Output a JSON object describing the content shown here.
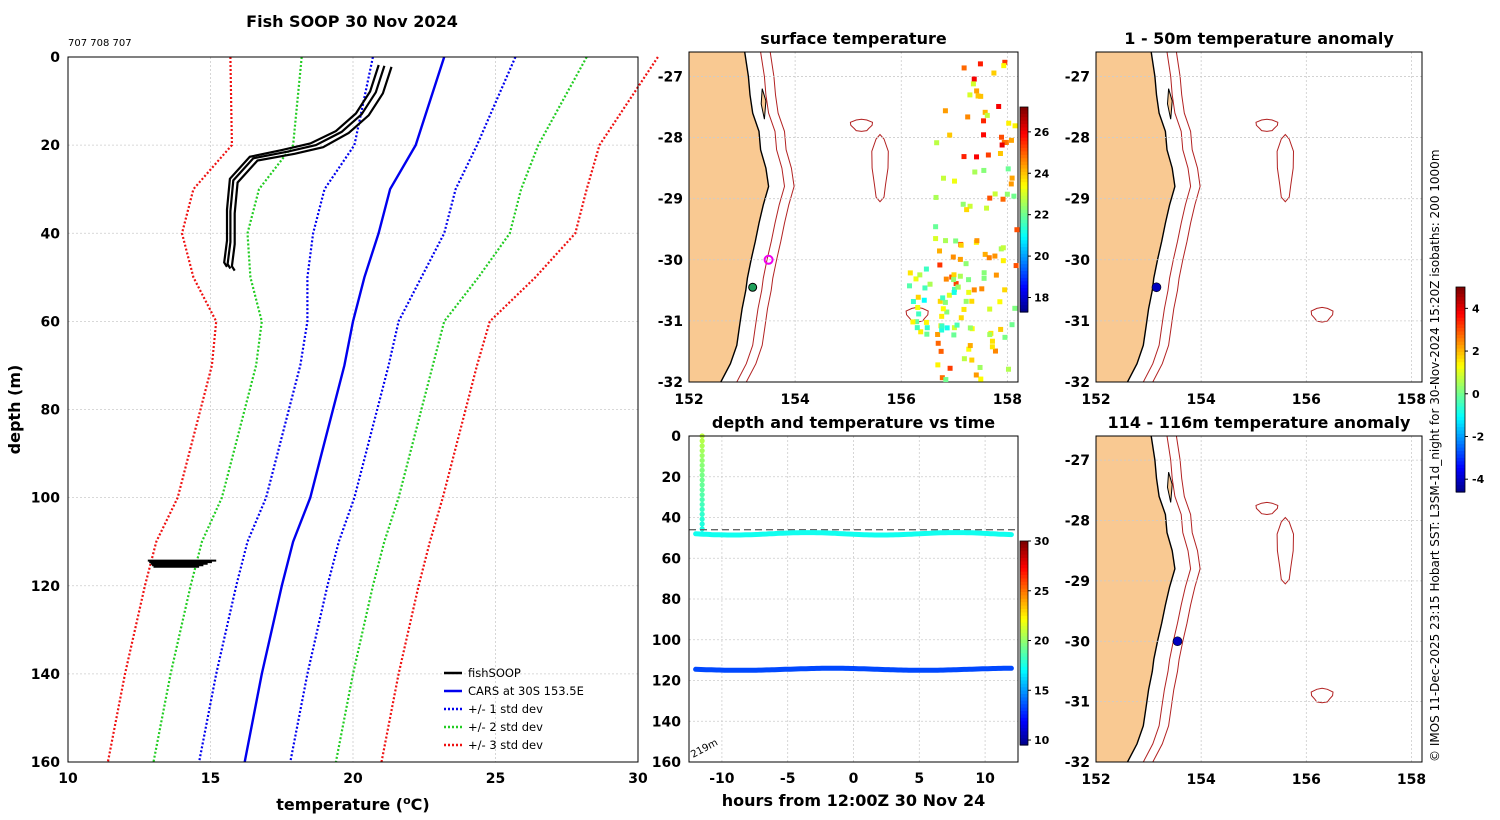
{
  "figure": {
    "title": "Fish SOOP 30 Nov 2024",
    "serials": "707 708 707",
    "credit": "© IMOS 11-Dec-2025 23:15 Hobart SST: L3SM-1d_night for 30-Nov-2024 15:20Z isobaths: 200  1000m"
  },
  "colors": {
    "land": "#f9c992",
    "isobath": "#b22222",
    "cars": "#0000ee",
    "std1": "#0000ee",
    "std2": "#22cc22",
    "std3": "#ee1111",
    "fish": "#000000"
  },
  "chart_data": [
    {
      "id": "profile",
      "type": "line",
      "title": "Fish SOOP 30 Nov 2024",
      "xlabel": "temperature (oC)",
      "ylabel": "depth (m)",
      "xlim": [
        10,
        30
      ],
      "ylim": [
        0,
        160
      ],
      "xticks": [
        10,
        15,
        20,
        25,
        30
      ],
      "yticks": [
        0,
        20,
        40,
        60,
        80,
        100,
        120,
        140,
        160
      ],
      "depths": [
        0,
        20,
        30,
        40,
        50,
        60,
        70,
        90,
        100,
        110,
        120,
        140,
        160
      ],
      "cars_mean": [
        23.2,
        22.2,
        21.3,
        20.9,
        20.4,
        20.0,
        19.7,
        18.9,
        18.5,
        17.9,
        17.5,
        16.8,
        16.2
      ],
      "series": [
        {
          "name": "CARS at 30S 153.5E",
          "style": "solid",
          "color": "cars",
          "offset": 0
        },
        {
          "name": "+/- 1 std dev",
          "style": "dotted",
          "color": "std1",
          "offset": 1
        },
        {
          "name": "+/- 2 std dev",
          "style": "dotted",
          "color": "std2",
          "offset": 2
        },
        {
          "name": "+/- 3 std dev",
          "style": "dotted",
          "color": "std3",
          "offset": 3
        }
      ],
      "std_dev": [
        2.5,
        2.15,
        2.3,
        2.3,
        2.0,
        1.6,
        1.55,
        1.55,
        1.55,
        1.6,
        1.6,
        1.6,
        1.6
      ],
      "fishsoop": {
        "name": "fishSOOP",
        "upper_profile_temp": [
          21.1,
          20.8,
          20.3,
          19.6,
          18.7,
          17.7,
          16.5,
          15.8,
          15.7,
          15.7,
          15.6,
          15.7
        ],
        "upper_profile_depth": [
          2,
          8,
          13,
          17,
          20,
          21.5,
          23,
          28,
          35,
          42,
          47,
          48
        ],
        "bottom_temp_range": [
          12.8,
          15.2
        ],
        "bottom_depth": 115
      }
    },
    {
      "id": "sst_map",
      "type": "heatmap",
      "title": "surface temperature",
      "xlim": [
        152,
        158.2
      ],
      "ylim": [
        -32,
        -26.6
      ],
      "xticks": [
        152,
        154,
        156,
        158
      ],
      "yticks": [
        -27,
        -28,
        -29,
        -30,
        -31,
        -32
      ],
      "colorbar": {
        "ticks": [
          18,
          20,
          22,
          24,
          26
        ],
        "range": [
          17.3,
          27.2
        ]
      },
      "markers": [
        {
          "name": "vessel",
          "lon": 153.2,
          "lat": -30.45
        },
        {
          "name": "cars-location",
          "lon": 153.5,
          "lat": -30.0
        }
      ]
    },
    {
      "id": "time_series",
      "type": "scatter",
      "title": "depth and temperature vs time",
      "xlabel": "hours from 12:00Z 30 Nov 24",
      "xlim": [
        -12.5,
        12.5
      ],
      "ylim": [
        0,
        160
      ],
      "xticks": [
        -10,
        -5,
        0,
        5,
        10
      ],
      "yticks": [
        0,
        20,
        40,
        60,
        80,
        100,
        120,
        140,
        160
      ],
      "colorbar": {
        "ticks": [
          10,
          15,
          20,
          25,
          30
        ],
        "range": [
          9.5,
          30
        ]
      },
      "bottom_depth_label": "219m",
      "dashed_depth": 46,
      "upper_depth": 48,
      "upper_temp": 17.5,
      "lower_depth": 114.5,
      "lower_temp": 13.5,
      "descent_temp": [
        21,
        17.5
      ]
    },
    {
      "id": "anom_shallow",
      "type": "heatmap",
      "title": "1 - 50m temperature anomaly",
      "xlim": [
        152,
        158.2
      ],
      "ylim": [
        -32,
        -26.6
      ],
      "xticks": [
        152,
        154,
        156,
        158
      ],
      "yticks": [
        -27,
        -28,
        -29,
        -30,
        -31,
        -32
      ],
      "markers": [
        {
          "name": "anomaly-point",
          "lon": 153.15,
          "lat": -30.45,
          "value": -4
        }
      ]
    },
    {
      "id": "anom_deep",
      "type": "heatmap",
      "title": "114 - 116m temperature anomaly",
      "xlim": [
        152,
        158.2
      ],
      "ylim": [
        -32,
        -26.6
      ],
      "xticks": [
        152,
        154,
        156,
        158
      ],
      "yticks": [
        -27,
        -28,
        -29,
        -30,
        -31,
        -32
      ],
      "markers": [
        {
          "name": "anomaly-point",
          "lon": 153.55,
          "lat": -30.0,
          "value": -4
        }
      ]
    },
    {
      "id": "anom_colorbar",
      "type": "heatmap",
      "colorbar": {
        "ticks": [
          4,
          2,
          0,
          -2,
          -4
        ],
        "range": [
          -4.6,
          5.0
        ]
      }
    }
  ]
}
